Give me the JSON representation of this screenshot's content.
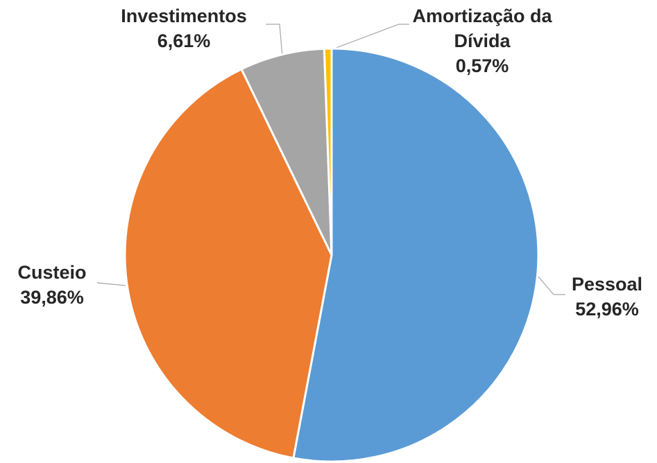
{
  "chart_data": {
    "type": "pie",
    "categories": [
      "Pessoal",
      "Custeio",
      "Investimentos",
      "Amortização da Dívida"
    ],
    "values": [
      52.96,
      39.86,
      6.61,
      0.57
    ],
    "value_labels": [
      "52,96%",
      "39,86%",
      "6,61%",
      "0,57%"
    ],
    "colors": [
      "#5B9BD5",
      "#ED7D31",
      "#A5A5A5",
      "#FFC000"
    ]
  }
}
